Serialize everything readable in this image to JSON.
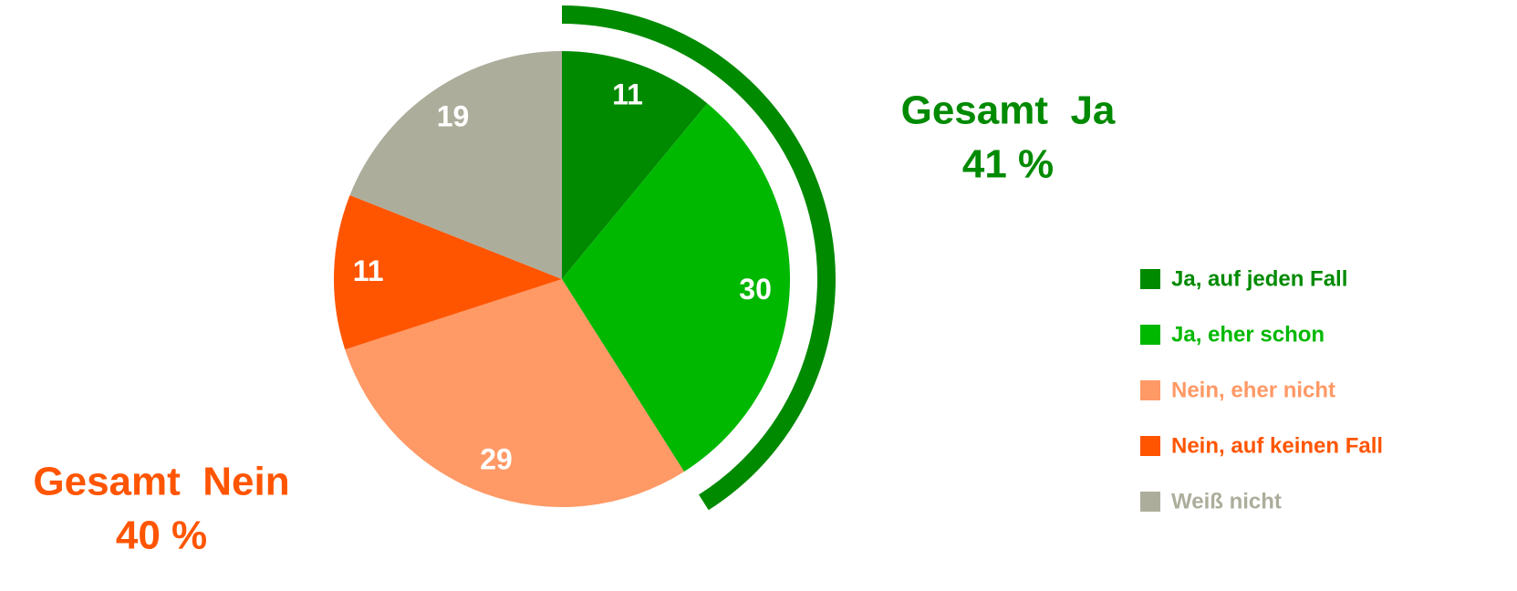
{
  "chart_data": {
    "type": "pie",
    "categories": [
      "Ja, auf jeden Fall",
      "Ja, eher schon",
      "Nein, eher nicht",
      "Nein, auf keinen Fall",
      "Weiß nicht"
    ],
    "values": [
      11,
      30,
      29,
      11,
      19
    ],
    "colors": [
      "#008a00",
      "#00b800",
      "#ff9966",
      "#ff5500",
      "#adad9c"
    ],
    "legend": "right",
    "annotations": [
      {
        "text": [
          "Gesamt  Ja",
          "41 %"
        ],
        "color": "#008a00"
      },
      {
        "text": [
          "Gesamt  Nein",
          "40 %"
        ],
        "color": "#ff5500"
      }
    ]
  }
}
